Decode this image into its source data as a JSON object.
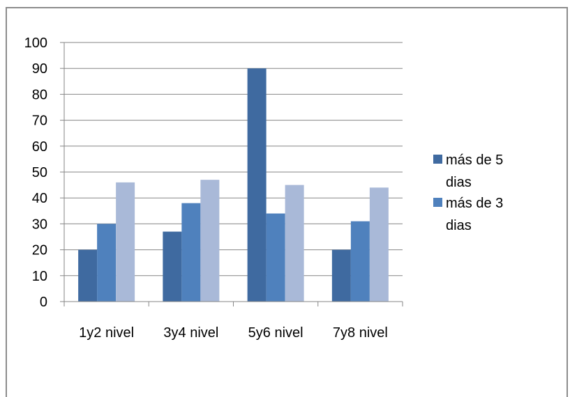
{
  "chart_data": {
    "type": "bar",
    "categories": [
      "1y2 nivel",
      "3y4 nivel",
      "5y6 nivel",
      "7y8 nivel"
    ],
    "series": [
      {
        "name": "más de 5 dias",
        "values": [
          20,
          27,
          90,
          20
        ],
        "color": "#3f6aa0"
      },
      {
        "name": "más de 3 dias",
        "values": [
          30,
          38,
          34,
          31
        ],
        "color": "#4f81bd"
      },
      {
        "values": [
          46,
          47,
          45,
          44
        ],
        "color": "#a9b9d8"
      }
    ],
    "ylim": [
      0,
      100
    ],
    "yticks": [
      0,
      10,
      20,
      30,
      40,
      50,
      60,
      70,
      80,
      90,
      100
    ],
    "grid": true,
    "legend_placement": "right",
    "legend_items": [
      {
        "lines": [
          "más de 5",
          "dias"
        ],
        "color": "#3f6aa0"
      },
      {
        "lines": [
          "más de 3",
          "dias"
        ],
        "color": "#4f81bd"
      }
    ]
  }
}
